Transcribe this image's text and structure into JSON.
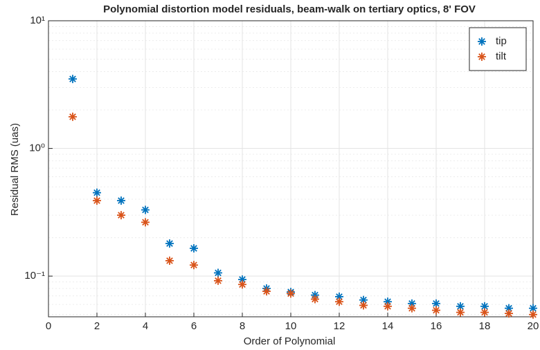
{
  "chart_data": {
    "type": "scatter",
    "title": "Polynomial distortion model residuals, beam-walk on tertiary optics, 8' FOV",
    "xlabel": "Order of Polynomial",
    "ylabel": "Residual RMS (uas)",
    "x": [
      1,
      2,
      3,
      4,
      5,
      6,
      7,
      8,
      9,
      10,
      11,
      12,
      13,
      14,
      15,
      16,
      17,
      18,
      19,
      20
    ],
    "series": [
      {
        "name": "tip",
        "color": "#0072bd",
        "values": [
          3.5,
          0.45,
          0.39,
          0.33,
          0.18,
          0.165,
          0.106,
          0.094,
          0.08,
          0.075,
          0.071,
          0.069,
          0.065,
          0.063,
          0.061,
          0.061,
          0.058,
          0.058,
          0.056,
          0.056
        ]
      },
      {
        "name": "tilt",
        "color": "#d95319",
        "values": [
          1.77,
          0.39,
          0.3,
          0.264,
          0.132,
          0.122,
          0.092,
          0.086,
          0.076,
          0.073,
          0.066,
          0.063,
          0.059,
          0.058,
          0.056,
          0.054,
          0.052,
          0.052,
          0.051,
          0.05
        ]
      }
    ],
    "xlim": [
      0,
      20
    ],
    "xticks": [
      0,
      2,
      4,
      6,
      8,
      10,
      12,
      14,
      16,
      18,
      20
    ],
    "ylim": [
      0.048,
      10
    ],
    "yticks": [
      {
        "value": 0.1,
        "label": "10⁻¹"
      },
      {
        "value": 1,
        "label": "10⁰"
      },
      {
        "value": 10,
        "label": "10¹"
      }
    ],
    "yscale": "log",
    "grid": true,
    "legend": "northeast"
  }
}
